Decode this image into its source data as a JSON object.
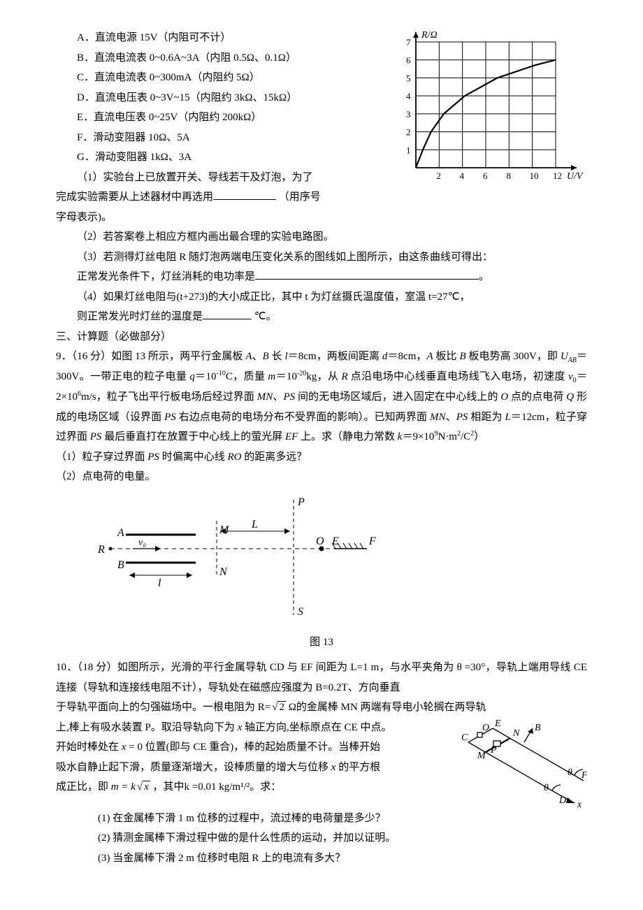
{
  "equipment": {
    "A": "A．直流电源 15V（内阻可不计）",
    "B": "B．直流电流表 0~0.6A~3A（内阻 0.5Ω、0.1Ω）",
    "C": "C．直流电流表 0~300mA（内阻约 5Ω）",
    "D": "D．直流电压表 0~3V~15（内阻约 3kΩ、15kΩ）",
    "E": "E．直流电压表 0~25V（内阻约 200kΩ）",
    "F": "F．滑动变阻器 10Ω、5A",
    "G": "G．滑动变阻器 1kΩ、3A"
  },
  "q8": {
    "p1a": "（1）实验台上已放置开关、导线若干及灯泡，为了",
    "p1b": "完成实验需要从上述器材中再选用",
    "p1c": "（用序号",
    "p1d": "字母表示)。",
    "p2": "（2）若答案卷上相应方框内画出最合理的实验电路图。",
    "p3a": "（3）若测得灯丝电阻 R 随灯泡两端电压变化关系的图线如上图所示，由这条曲线可得出：",
    "p3b": "正常发光条件下，灯丝消耗的电功率是",
    "p3c": "。",
    "p4a": "（4）如果灯丝电阻与(t+273)的大小成正比，其中 t 为灯丝摄氏温度值，室温 t=27℃，",
    "p4b": "则正常发光时灯丝的温度是",
    "p4c": "℃。"
  },
  "sectionTitle": "三、计算题（必做部分）",
  "q9": {
    "head": "9．（16 分）如图 13 所示，两平行金属板 A、B 长 l＝8cm，两板间距离 d＝8cm，A 板比 B 板电势高 300V，即 U_AB＝300V。一带正电的粒子电量 q＝10⁻¹⁰C，质量 m＝10⁻²⁰kg，从 R 点沿电场中心线垂直电场线飞入电场，初速度 v₀＝2×10⁶m/s，粒子飞出平行板电场后经过界面 MN、PS 间的无电场区域后，进入固定在中心线上的 O 点的点电荷 Q 形成的电场区域（设界面 PS 右边点电荷的电场分布不受界面的影响）。已知两界面 MN、PS 相距为 L＝12cm，粒子穿过界面 PS 最后垂直打在放置于中心线上的萤光屏 EF 上。求（静电力常数 k＝9×10⁹N·m²/C²）",
    "sub1": "（1）粒子穿过界面 PS 时偏离中心线 RO 的距离多远？",
    "sub2": "（2）点电荷的电量。",
    "figLabel": "图 13"
  },
  "q10": {
    "head": "10．（18 分）如图所示，光滑的平行金属导轨 CD 与 EF 间距为 L=1 m，与水平夹角为 θ =30°，导轨上端用导线 CE 连接（导轨和连接线电阻不计），导轨处在磁感应强度为 B=0.2T、方向垂直",
    "mid1a": "于导轨平面向上的匀强磁场中。一根电阻为 R=",
    "mid1b": " Ω的金属棒 MN 两端有导电小轮搁在两导轨",
    "mid2a": "上,棒上有吸水装置 P。取沿导轨向下为 x 轴正方向,坐标原点在 CE 中点。",
    "mid2b": "开始时棒处在 x = 0 位置(即与 CE 重合)，棒的起始质量不计。当棒开始",
    "mid2c": "吸水自静止起下滑，质量逐渐增大，设棒质量的增大与位移 x 的平方根",
    "mid3a": "成正比，即 ",
    "mid3b": "，其中k =0.01 kg/m¹/²。求：",
    "s1": "(1) 在金属棒下滑 1 m 位移的过程中，流过棒的电荷量是多少？",
    "s2": "(2) 猜测金属棒下滑过程中做的是什么性质的运动，并加以证明。",
    "s3": "(3) 当金属棒下滑 2 m 位移时电阻 R 上的电流有多大？"
  },
  "chart": {
    "yAxisLabel": "R/Ω",
    "xAxisLabel": "U/V",
    "xTicks": [
      "2",
      "4",
      "6",
      "8",
      "10",
      "12"
    ],
    "yTicks": [
      "1",
      "2",
      "3",
      "4",
      "5",
      "6",
      "7"
    ],
    "gridColor": "#000000",
    "curveColor": "#000000",
    "bg": "#ffffff",
    "curvePoints": [
      [
        0,
        0
      ],
      [
        0.6,
        1
      ],
      [
        1.3,
        2
      ],
      [
        2.4,
        3
      ],
      [
        4.2,
        4
      ],
      [
        7,
        5
      ],
      [
        10.2,
        5.7
      ],
      [
        12,
        6
      ]
    ]
  },
  "fig13": {
    "labels": {
      "A": "A",
      "B": "B",
      "R": "R",
      "M": "M",
      "N": "N",
      "P": "P",
      "S": "S",
      "O": "O",
      "E": "E",
      "F": "F",
      "l": "l",
      "L": "L",
      "v0": "v₀"
    }
  },
  "fig10": {
    "labels": {
      "C": "C",
      "E": "E",
      "M": "M",
      "N": "N",
      "O": "O",
      "B": "B",
      "P": "P",
      "F": "F",
      "D": "D",
      "x": "x",
      "theta": "θ"
    }
  }
}
